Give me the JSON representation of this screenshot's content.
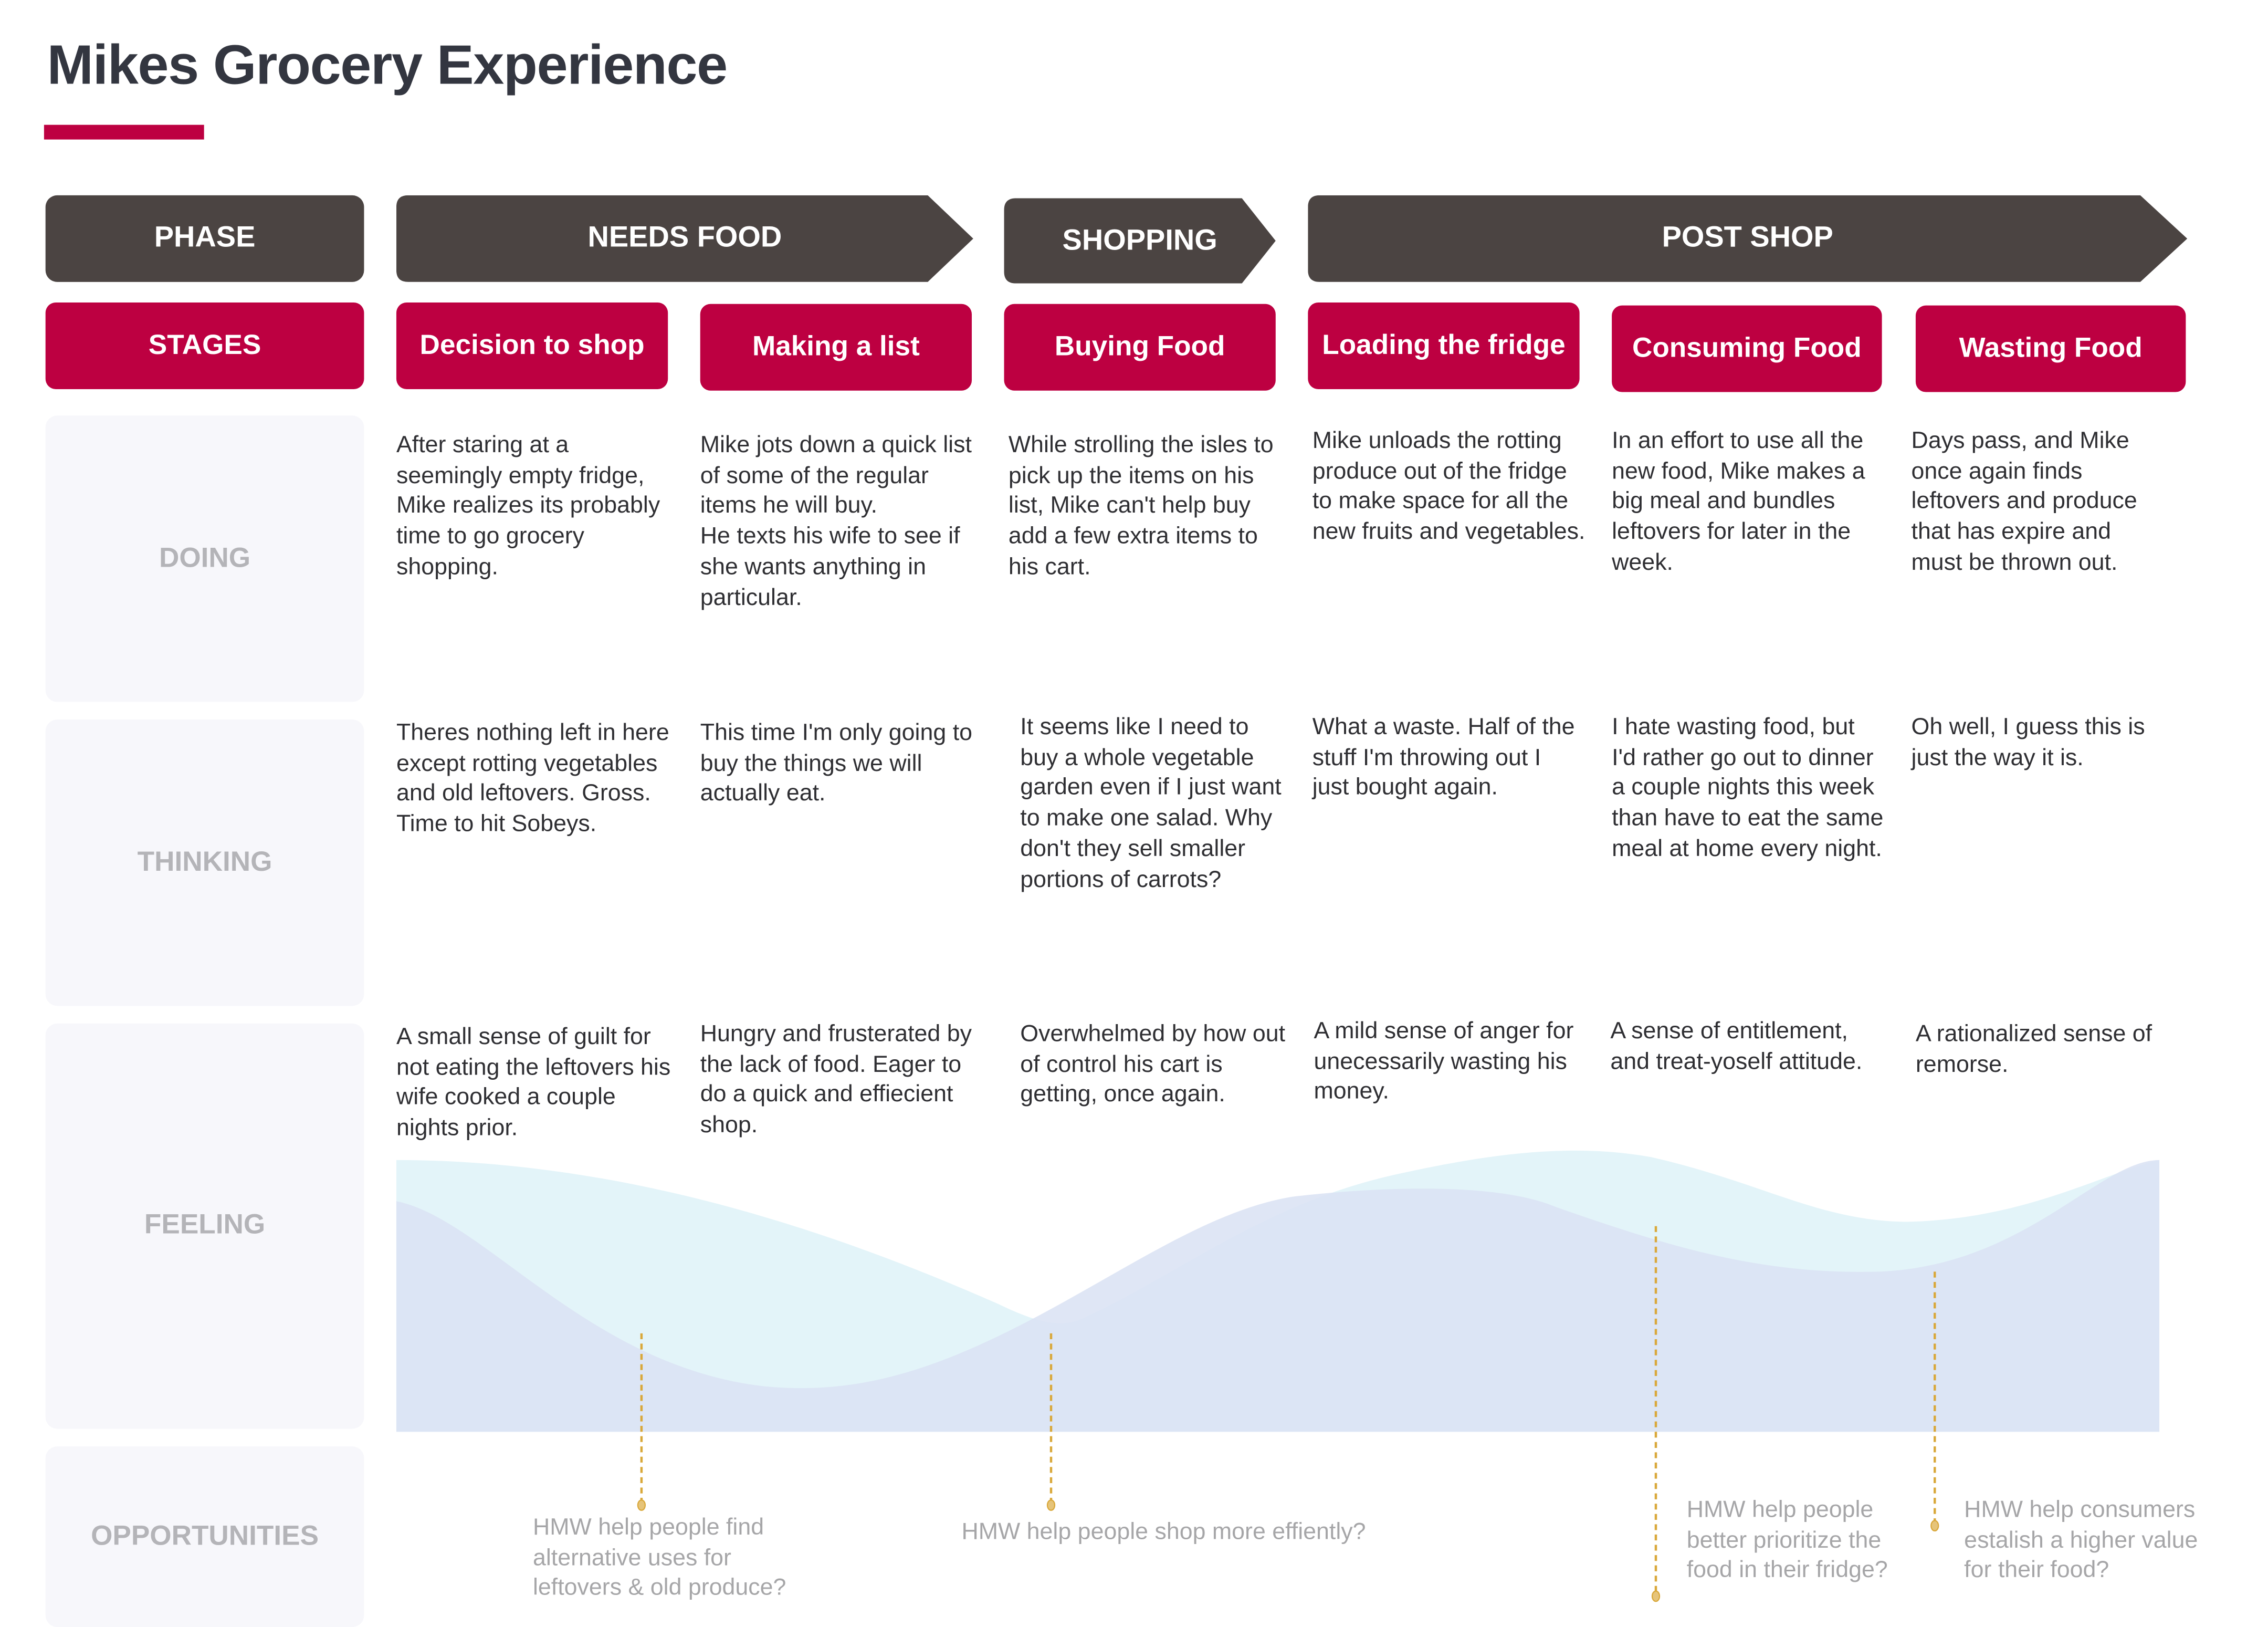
{
  "title": "Mikes Grocery Experience",
  "phase_label": "PHASE",
  "stages_label": "STAGES",
  "phases": [
    "NEEDS FOOD",
    "SHOPPING",
    "POST SHOP"
  ],
  "stages": [
    "Decision to shop",
    "Making a list",
    "Buying Food",
    "Loading the fridge",
    "Consuming Food",
    "Wasting Food"
  ],
  "rows": {
    "doing": {
      "label": "DOING",
      "cells": [
        "After staring at a seemingly empty fridge, Mike realizes its probably time to go grocery shopping.",
        "Mike jots down a quick list of some of the regular items he will buy.\nHe texts his wife to see if she wants anything in particular.",
        "While strolling the isles to pick up the items on his list, Mike can't help buy add a few extra items to his cart.",
        "Mike unloads the rotting produce out of the fridge to make space for all the new fruits and vegetables.",
        "In an effort to use all the new food, Mike makes a big meal and bundles leftovers for later in the week.",
        "Days pass, and Mike once again finds leftovers and produce that has expire and must be thrown out."
      ]
    },
    "thinking": {
      "label": "THINKING",
      "cells": [
        "Theres nothing left in here except rotting vegetables and old leftovers. Gross. Time to hit Sobeys.",
        "This time I'm only going to buy the things we will actually eat.",
        "It seems like I need to buy a whole vegetable garden even if I just want to make one salad. Why don't they sell smaller portions of carrots?",
        "What a waste. Half of the stuff I'm throwing out I just bought again.",
        "I hate wasting food, but I'd rather go out to dinner a couple nights this week than have to eat the same meal at home every night.",
        "Oh well, I guess this is just the way it is."
      ]
    },
    "feeling": {
      "label": "FEELING",
      "cells": [
        "A small sense of guilt for not eating the leftovers his wife cooked a couple nights prior.",
        "Hungry and frusterated by the lack of food. Eager to do a quick and effiecient shop.",
        "Overwhelmed by how out of control his cart is getting, once again.",
        "A mild sense of anger for unecessarily wasting his money.",
        "A sense of entitlement, and treat-yoself attitude.",
        "A rationalized sense of remorse."
      ]
    },
    "opportunities": {
      "label": "OPPORTUNITIES",
      "cells": [
        "HMW help people find\nalternative uses for\nleftovers & old produce?",
        "HMW help people shop more effiently?",
        "HMW help people\nbetter prioritize the\nfood in their fridge?",
        "HMW help consumers\nestalish a higher value\nfor their food?"
      ]
    }
  },
  "colors": {
    "brand": "#bd0041",
    "phase": "#4b4442",
    "curve_light": "#e3f4f9",
    "curve_blue": "#dfe5f5",
    "marker": "#d9a83a"
  }
}
